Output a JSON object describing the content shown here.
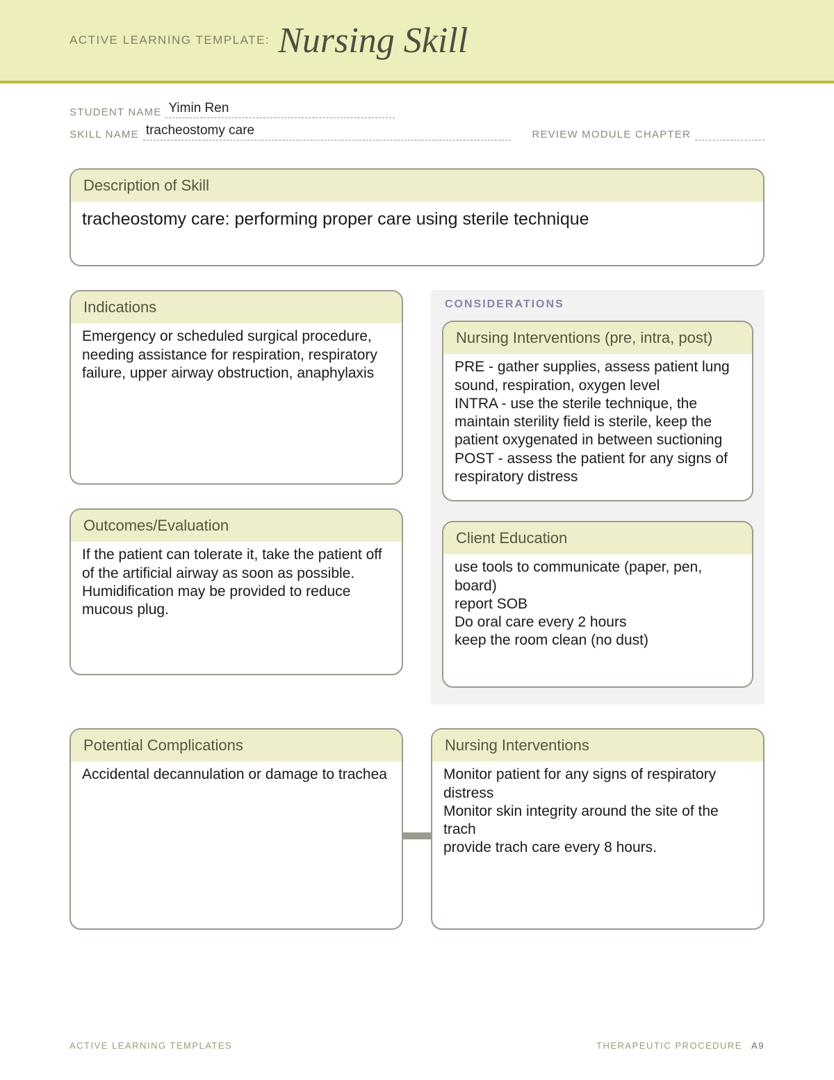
{
  "header": {
    "label": "ACTIVE LEARNING TEMPLATE:",
    "title": "Nursing Skill"
  },
  "meta": {
    "student_name_label": "STUDENT NAME",
    "student_name": "Yimin Ren",
    "skill_name_label": "SKILL NAME",
    "skill_name": "tracheostomy care",
    "review_label": "REVIEW MODULE CHAPTER",
    "review_value": ""
  },
  "boxes": {
    "description": {
      "title": "Description of Skill",
      "body": "tracheostomy care: performing proper care using sterile technique"
    },
    "indications": {
      "title": "Indications",
      "body": "Emergency or scheduled surgical procedure, needing assistance for respiration, respiratory failure, upper airway obstruction, anaphylaxis"
    },
    "outcomes": {
      "title": "Outcomes/Evaluation",
      "body": "If the patient can tolerate it, take the patient off of the artificial airway as soon as possible. Humidification may be provided to reduce mucous plug."
    },
    "considerations_label": "CONSIDERATIONS",
    "nursing_pre": {
      "title": "Nursing Interventions (pre, intra, post)",
      "body": "PRE - gather supplies, assess patient lung sound, respiration, oxygen level\nINTRA - use the sterile technique, the maintain  sterility field is sterile, keep the patient oxygenated in between suctioning\nPOST - assess the patient for any signs of respiratory distress"
    },
    "client_ed": {
      "title": "Client Education",
      "body": "use tools to communicate (paper, pen, board)\nreport SOB\nDo oral care every 2 hours\nkeep the room clean (no dust)"
    },
    "complications": {
      "title": "Potential Complications",
      "body": "Accidental decannulation or damage to trachea"
    },
    "nursing_int": {
      "title": "Nursing Interventions",
      "body": "Monitor patient for any signs of respiratory distress\nMonitor skin integrity around the site of the trach\nprovide trach care every 8 hours."
    }
  },
  "footer": {
    "left": "ACTIVE LEARNING TEMPLATES",
    "right": "THERAPEUTIC PROCEDURE",
    "page": "A9"
  },
  "colors": {
    "band_bg": "#eeeebc",
    "band_border": "#bdb93f",
    "box_header_bg": "#eeeeca",
    "box_border": "#9a9a8e",
    "right_panel_bg": "#f2f2f2"
  }
}
